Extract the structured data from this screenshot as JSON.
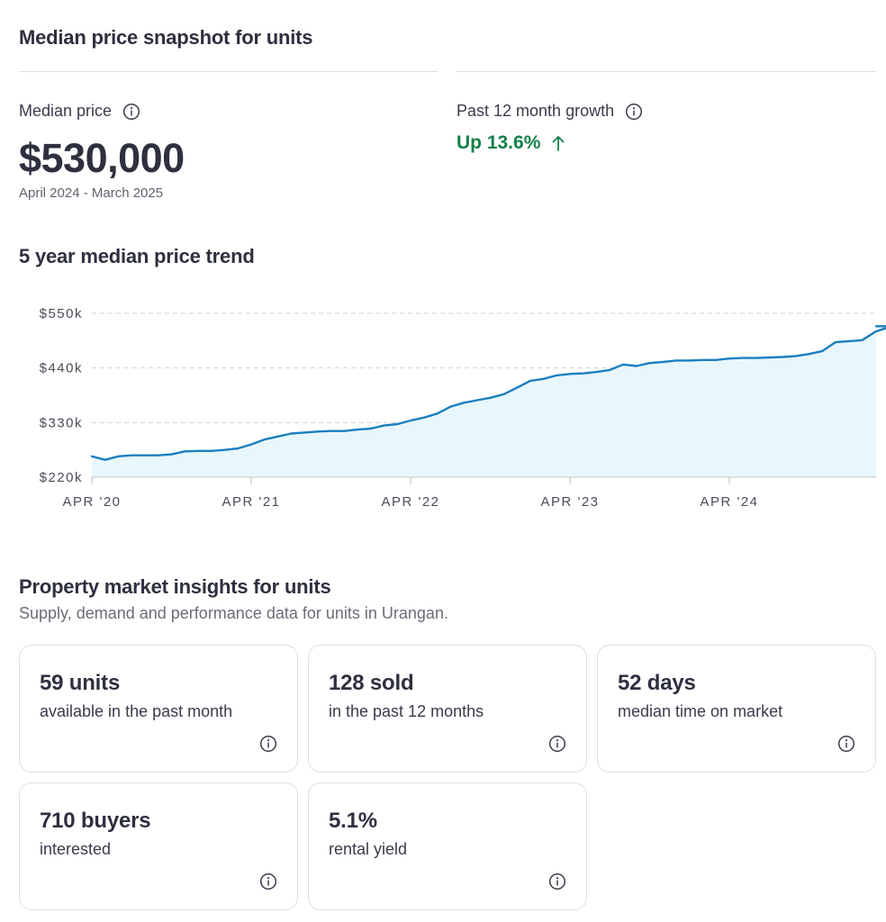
{
  "snapshot": {
    "title": "Median price snapshot for units",
    "median_label": "Median price",
    "median_value": "$530,000",
    "period": "April 2024 - March 2025",
    "growth_label": "Past 12 month growth",
    "growth_value": "Up 13.6%",
    "growth_color": "#13804a",
    "info_icon": "info-circle-icon",
    "arrow_icon": "arrow-up-icon"
  },
  "trend": {
    "title": "5 year median price trend"
  },
  "chart_data": {
    "type": "area",
    "title": "5 year median price trend",
    "xlabel": "",
    "ylabel": "",
    "x_ticks": [
      "APR '20",
      "APR '21",
      "APR '22",
      "APR '23",
      "APR '24"
    ],
    "y_ticks": [
      "$220k",
      "$330k",
      "$440k",
      "$550k"
    ],
    "ylim": [
      220000,
      550000
    ],
    "x_unit": "months since Apr 2020",
    "grid": "horizontal dashed",
    "line_color": "#1b7fbf",
    "fill_color": "#e8f7fc",
    "series": [
      {
        "points": [
          [
            0,
            262000
          ],
          [
            1,
            255000
          ],
          [
            2,
            262000
          ],
          [
            3,
            264000
          ],
          [
            4,
            264000
          ],
          [
            5,
            264000
          ],
          [
            6,
            266000
          ],
          [
            7,
            272000
          ],
          [
            8,
            273000
          ],
          [
            9,
            273000
          ],
          [
            10,
            275000
          ],
          [
            11,
            278000
          ],
          [
            12,
            286000
          ],
          [
            13,
            296000
          ],
          [
            14,
            302000
          ],
          [
            15,
            308000
          ],
          [
            16,
            310000
          ],
          [
            17,
            312000
          ],
          [
            18,
            313000
          ],
          [
            19,
            313000
          ],
          [
            20,
            316000
          ],
          [
            21,
            318000
          ],
          [
            22,
            324000
          ],
          [
            23,
            327000
          ],
          [
            24,
            334000
          ],
          [
            25,
            340000
          ],
          [
            26,
            348000
          ],
          [
            27,
            362000
          ],
          [
            28,
            370000
          ],
          [
            29,
            375000
          ],
          [
            30,
            380000
          ],
          [
            31,
            387000
          ],
          [
            32,
            400000
          ],
          [
            33,
            414000
          ],
          [
            34,
            418000
          ],
          [
            35,
            425000
          ],
          [
            36,
            428000
          ],
          [
            37,
            429000
          ],
          [
            38,
            432000
          ],
          [
            39,
            436000
          ],
          [
            40,
            447000
          ],
          [
            41,
            444000
          ],
          [
            42,
            450000
          ],
          [
            43,
            452000
          ],
          [
            44,
            455000
          ],
          [
            45,
            455000
          ],
          [
            46,
            456000
          ],
          [
            47,
            456000
          ],
          [
            48,
            459000
          ],
          [
            49,
            460000
          ],
          [
            50,
            460000
          ],
          [
            51,
            461000
          ],
          [
            52,
            462000
          ],
          [
            53,
            464000
          ],
          [
            54,
            468000
          ],
          [
            55,
            474000
          ],
          [
            56,
            492000
          ],
          [
            57,
            494000
          ],
          [
            58,
            496000
          ],
          [
            59,
            513000
          ],
          [
            60,
            522000
          ],
          [
            61,
            530000
          ],
          [
            62,
            528000
          ],
          [
            63,
            525000
          ],
          [
            64,
            524000
          ],
          [
            65,
            524000
          ]
        ]
      }
    ]
  },
  "insights": {
    "title": "Property market insights for units",
    "subtitle": "Supply, demand and performance data for units in Urangan.",
    "cards": [
      {
        "value": "59 units",
        "desc": "available in the past month"
      },
      {
        "value": "128 sold",
        "desc": "in the past 12 months"
      },
      {
        "value": "52 days",
        "desc": "median time on market"
      },
      {
        "value": "710 buyers",
        "desc": "interested"
      },
      {
        "value": "5.1%",
        "desc": "rental yield"
      }
    ]
  }
}
